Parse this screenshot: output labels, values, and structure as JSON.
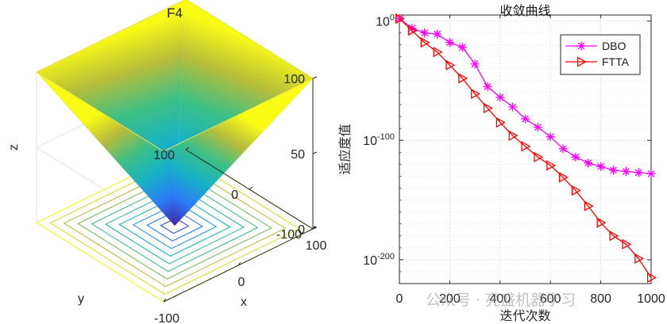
{
  "chart_data": [
    {
      "type": "surface3d",
      "title": "F4",
      "xlabel": "x",
      "ylabel": "y",
      "zlabel": "z",
      "xlim": [
        -100,
        100
      ],
      "ylim": [
        -100,
        100
      ],
      "zlim": [
        0,
        100
      ],
      "x_ticks": [
        "-100",
        "0",
        "100"
      ],
      "y_ticks": [
        "100",
        "0",
        "-100"
      ],
      "z_ticks": [
        "100",
        "50",
        "0"
      ],
      "function": "max(|x|,|y|)",
      "contour_levels": [
        10,
        20,
        30,
        40,
        50,
        60,
        70,
        80,
        90,
        100
      ],
      "colormap": [
        "#3e26a8",
        "#2c7cf7",
        "#17b2c6",
        "#3dbf85",
        "#b7bd3a",
        "#f9fb15"
      ]
    },
    {
      "type": "line",
      "title": "收敛曲线",
      "xlabel": "迭代次数",
      "ylabel": "适应度值",
      "xlim": [
        0,
        1000
      ],
      "ylim_log10": [
        -220,
        5
      ],
      "yscale": "log",
      "x_ticks": [
        "0",
        "200",
        "400",
        "600",
        "800",
        "1000"
      ],
      "y_ticks": [
        {
          "base": "10",
          "exp": "0",
          "log10": 0
        },
        {
          "base": "10",
          "exp": "-100",
          "log10": -100
        },
        {
          "base": "10",
          "exp": "-200",
          "log10": -200
        }
      ],
      "legend_position": "top-right",
      "grid": true,
      "x": [
        0,
        50,
        100,
        150,
        200,
        250,
        300,
        350,
        400,
        450,
        500,
        550,
        600,
        650,
        700,
        750,
        800,
        850,
        900,
        950,
        1000
      ],
      "series": [
        {
          "name": "DBO",
          "color": "#ff00ff",
          "marker": "asterisk",
          "log10_values": [
            2,
            -6,
            -10,
            -11,
            -18,
            -22,
            -36,
            -55,
            -64,
            -72,
            -82,
            -89,
            -97,
            -107,
            -114,
            -119,
            -122,
            -125,
            -126,
            -127,
            -128
          ]
        },
        {
          "name": "FTTA",
          "color": "#ff0000",
          "marker": "triangle-right",
          "log10_values": [
            2,
            -8,
            -18,
            -26,
            -37,
            -48,
            -61,
            -73,
            -85,
            -96,
            -105,
            -114,
            -121,
            -131,
            -142,
            -155,
            -169,
            -180,
            -187,
            -199,
            -215
          ]
        }
      ]
    }
  ],
  "watermark": "公众号 · 亮盛机器学习"
}
